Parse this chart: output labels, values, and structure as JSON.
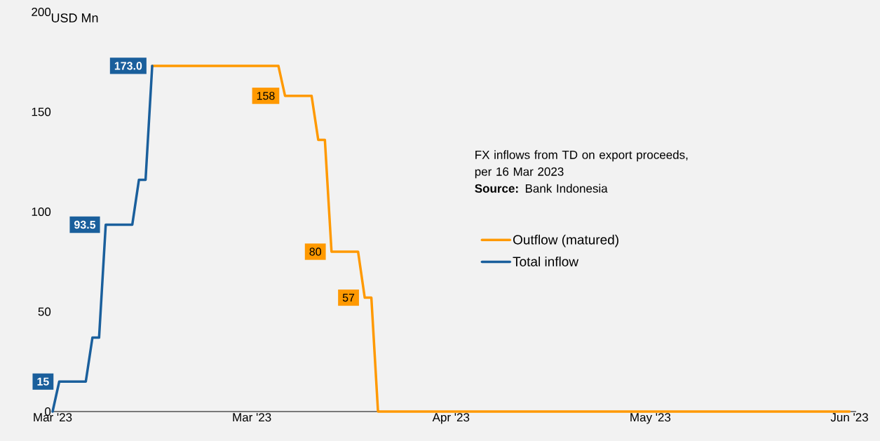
{
  "chart_data": {
    "type": "line",
    "ylabel": "USD Mn",
    "annotations": [
      "FX inflows from TD on export proceeds, per 16 Mar 2023",
      "**Source:** Bank Indonesia"
    ],
    "xlim": [
      "2023-03-01",
      "2023-06-30"
    ],
    "ylim": [
      0,
      200
    ],
    "xticks": [
      {
        "value": "2023-03-01",
        "label": "Mar '23"
      },
      {
        "value": "2023-03-31",
        "label": "Mar '23"
      },
      {
        "value": "2023-04-30",
        "label": "Apr '23"
      },
      {
        "value": "2023-05-30",
        "label": "May '23"
      },
      {
        "value": "2023-06-29",
        "label": "Jun '23"
      }
    ],
    "yticks": [
      0,
      50,
      100,
      150,
      200
    ],
    "legend": "center",
    "series": [
      {
        "name": "Outflow (matured)",
        "color": "#ff9900",
        "x": [
          "2023-03-16",
          "2023-04-04",
          "2023-04-05",
          "2023-04-09",
          "2023-04-10",
          "2023-04-11",
          "2023-04-12",
          "2023-04-16",
          "2023-04-17",
          "2023-04-18",
          "2023-04-19",
          "2023-06-29"
        ],
        "values": [
          173,
          173,
          158,
          158,
          136,
          136,
          80,
          80,
          57,
          57,
          0,
          0
        ],
        "value_labels": [
          null,
          null,
          "158",
          null,
          null,
          null,
          "80",
          null,
          "57",
          null,
          null,
          null
        ]
      },
      {
        "name": "Total inflow",
        "color": "#1a5f9c",
        "x": [
          "2023-03-01",
          "2023-03-02",
          "2023-03-06",
          "2023-03-07",
          "2023-03-08",
          "2023-03-09",
          "2023-03-13",
          "2023-03-14",
          "2023-03-15",
          "2023-03-16"
        ],
        "values": [
          0,
          15,
          15,
          37,
          37,
          93.5,
          93.5,
          116,
          116,
          173
        ],
        "value_labels": [
          null,
          "15",
          null,
          null,
          null,
          "93.5",
          null,
          null,
          null,
          "173.0"
        ]
      }
    ]
  }
}
